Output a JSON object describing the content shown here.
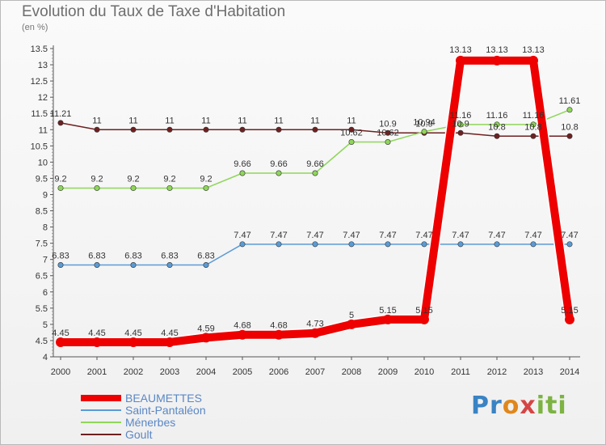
{
  "title": "Evolution du Taux de Taxe d'Habitation",
  "unit_label": "(en %)",
  "logo_text": "Proxiti",
  "chart_data": {
    "type": "line",
    "title": "Evolution du Taux de Taxe d'Habitation",
    "ylabel": "(en %)",
    "xlabel": "",
    "ylim": [
      4,
      13.5
    ],
    "yticks": [
      4,
      4.5,
      5,
      5.5,
      6,
      6.5,
      7,
      7.5,
      8,
      8.5,
      9,
      9.5,
      10,
      10.5,
      11,
      11.5,
      12,
      12.5,
      13,
      13.5
    ],
    "categories": [
      "2000",
      "2001",
      "2002",
      "2003",
      "2004",
      "2005",
      "2006",
      "2007",
      "2008",
      "2009",
      "2010",
      "2011",
      "2012",
      "2013",
      "2014"
    ],
    "series": [
      {
        "name": "BEAUMETTES",
        "color": "#ee0000",
        "values": [
          4.45,
          4.45,
          4.45,
          4.45,
          4.59,
          4.68,
          4.68,
          4.73,
          5,
          5.15,
          5.15,
          13.13,
          13.13,
          13.13,
          5.15
        ]
      },
      {
        "name": "Saint-Pantaléon",
        "color": "#5b9bd5",
        "values": [
          6.83,
          6.83,
          6.83,
          6.83,
          6.83,
          7.47,
          7.47,
          7.47,
          7.47,
          7.47,
          7.47,
          7.47,
          7.47,
          7.47,
          7.47
        ]
      },
      {
        "name": "Ménerbes",
        "color": "#8fd65a",
        "values": [
          9.2,
          9.2,
          9.2,
          9.2,
          9.2,
          9.66,
          9.66,
          9.66,
          10.62,
          10.62,
          10.94,
          11.16,
          11.16,
          11.16,
          11.61
        ]
      },
      {
        "name": "Goult",
        "color": "#6e2020",
        "values": [
          11.21,
          11,
          11,
          11,
          11,
          11,
          11,
          11,
          11,
          10.9,
          10.9,
          10.9,
          10.8,
          10.8,
          10.8
        ]
      }
    ],
    "legend_position": "bottom-left",
    "grid": false
  }
}
